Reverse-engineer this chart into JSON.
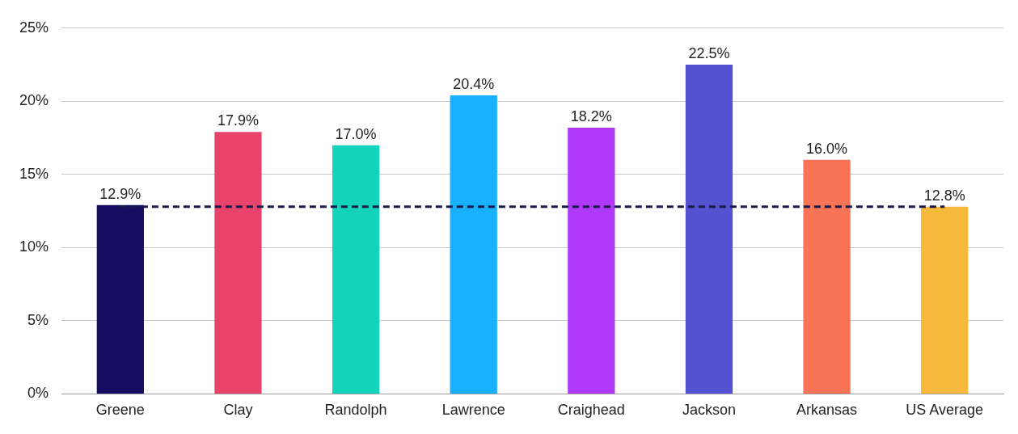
{
  "chart_data": {
    "type": "bar",
    "categories": [
      "Greene",
      "Clay",
      "Randolph",
      "Lawrence",
      "Craighead",
      "Jackson",
      "Arkansas",
      "US Average"
    ],
    "values": [
      12.9,
      17.9,
      17.0,
      20.4,
      18.2,
      22.5,
      16.0,
      12.8
    ],
    "colors": [
      "#160c60",
      "#e8436a",
      "#14d3bc",
      "#18b1ff",
      "#b038fb",
      "#5452d0",
      "#f97457",
      "#f7b93c"
    ],
    "value_labels": [
      "12.9%",
      "17.9%",
      "17.0%",
      "20.4%",
      "18.2%",
      "22.5%",
      "16.0%",
      "12.8%"
    ],
    "ylim": [
      0,
      25
    ],
    "yticks": [
      {
        "value": 0,
        "label": "0%"
      },
      {
        "value": 5,
        "label": "5%"
      },
      {
        "value": 10,
        "label": "10%"
      },
      {
        "value": 15,
        "label": "15%"
      },
      {
        "value": 20,
        "label": "20%"
      },
      {
        "value": 25,
        "label": "25%"
      }
    ],
    "ref_lines": [
      {
        "axis": "y",
        "value": 12.8,
        "color": "#1a1a4a",
        "line_style": "dashed"
      }
    ],
    "grid": "y",
    "legend": false
  }
}
